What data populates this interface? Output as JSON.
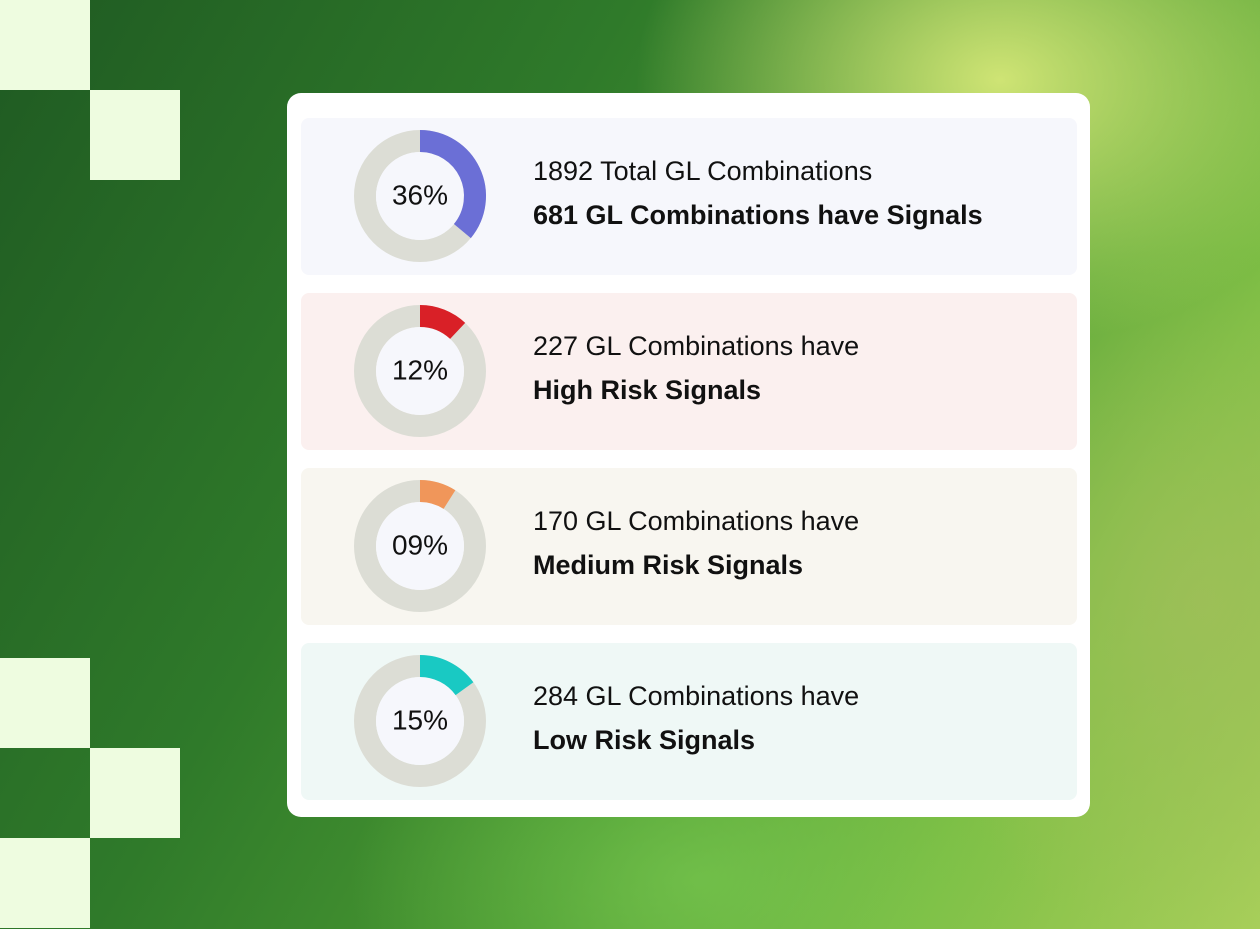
{
  "cards": [
    {
      "value": 36,
      "value_label": "36%",
      "text": "1892 Total GL Combinations",
      "subtext": "681 GL Combinations have Signals",
      "color": "#6b6fd6",
      "background": "#f6f7fc"
    },
    {
      "value": 12,
      "value_label": "12%",
      "text": "227 GL Combinations have",
      "subtext": "High Risk Signals",
      "color": "#d92027",
      "background": "#fbf0ef"
    },
    {
      "value": 9,
      "value_label": "09%",
      "text": "170 GL Combinations have",
      "subtext": "Medium Risk Signals",
      "color": "#f0965a",
      "background": "#f8f6f0"
    },
    {
      "value": 15,
      "value_label": "15%",
      "text": "284 GL Combinations have",
      "subtext": "Low Risk Signals",
      "color": "#19c9c3",
      "background": "#eff8f6"
    }
  ]
}
